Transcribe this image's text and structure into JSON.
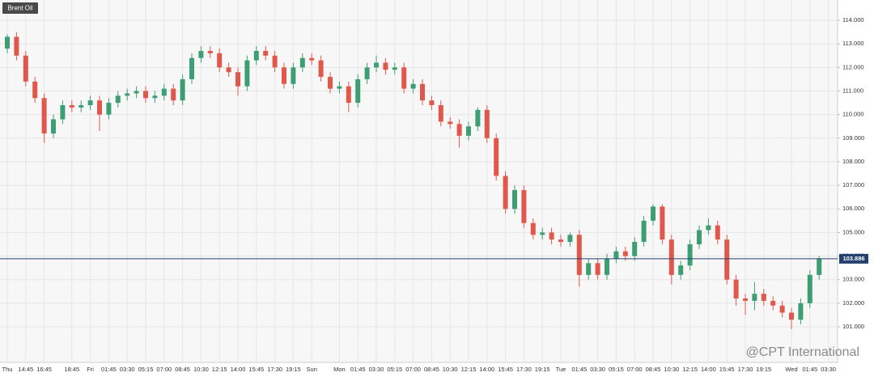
{
  "chart_data": {
    "type": "candlestick",
    "title": "Brent Oil",
    "watermark": "@CPT International",
    "current_price": 103.886,
    "up_color": "#3d9e73",
    "down_color": "#e0584c",
    "price_line_color": "#23406f",
    "grid": true,
    "categories": [
      "Thu",
      null,
      "14:45",
      null,
      "16:45",
      null,
      null,
      "18:45",
      null,
      "Fri",
      null,
      "01:45",
      null,
      "03:30",
      null,
      "05:15",
      null,
      "07:00",
      null,
      "08:45",
      null,
      "10:30",
      null,
      "12:15",
      null,
      "14:00",
      null,
      "15:45",
      null,
      "17:30",
      null,
      "19:15",
      null,
      "Sun",
      null,
      null,
      "Mon",
      null,
      "01:45",
      null,
      "03:30",
      null,
      "05:15",
      null,
      "07:00",
      null,
      "08:45",
      null,
      "10:30",
      null,
      "12:15",
      null,
      "14:00",
      null,
      "15:45",
      null,
      "17:30",
      null,
      "19:15",
      null,
      "Tue",
      null,
      "01:45",
      null,
      "03:30",
      null,
      "05:15",
      null,
      "07:00",
      null,
      "08:45",
      null,
      "10:30",
      null,
      "12:15",
      null,
      "14:00",
      null,
      "15:45",
      null,
      "17:30",
      null,
      "19:15",
      null,
      null,
      "Wed",
      null,
      "01:45",
      null,
      "03:30"
    ],
    "open": [
      112.8,
      113.3,
      112.5,
      111.4,
      110.7,
      109.2,
      109.8,
      110.4,
      110.3,
      110.4,
      110.6,
      110.0,
      110.5,
      110.8,
      110.9,
      111.0,
      110.7,
      110.8,
      111.1,
      110.6,
      111.5,
      112.4,
      112.7,
      112.6,
      112.0,
      111.8,
      111.2,
      112.3,
      112.7,
      112.5,
      112.0,
      111.3,
      112.0,
      112.4,
      112.3,
      111.6,
      111.1,
      111.2,
      110.5,
      111.5,
      112.0,
      112.2,
      111.9,
      112.0,
      111.1,
      111.3,
      110.6,
      110.4,
      109.7,
      109.6,
      109.1,
      109.5,
      110.2,
      109.0,
      107.4,
      106.0,
      106.8,
      105.4,
      104.9,
      105.0,
      104.7,
      104.6,
      104.9,
      103.2,
      103.7,
      103.2,
      103.9,
      104.2,
      104.0,
      104.6,
      105.5,
      106.1,
      104.7,
      103.2,
      103.6,
      104.5,
      105.1,
      105.3,
      104.7,
      103.0,
      102.2,
      102.1,
      102.4,
      102.1,
      101.9,
      101.6,
      101.3,
      102.0,
      103.2,
      null
    ],
    "high": [
      113.4,
      113.5,
      112.7,
      111.6,
      110.9,
      110.0,
      110.6,
      110.6,
      110.6,
      110.8,
      110.8,
      110.7,
      111.0,
      111.1,
      111.2,
      111.2,
      111.0,
      111.3,
      111.3,
      111.7,
      112.6,
      112.9,
      112.9,
      112.8,
      112.2,
      112.0,
      112.5,
      112.9,
      112.9,
      112.7,
      112.2,
      112.2,
      112.6,
      112.6,
      112.5,
      111.8,
      111.4,
      111.4,
      111.7,
      112.2,
      112.5,
      112.4,
      112.2,
      112.2,
      111.5,
      111.5,
      110.8,
      110.6,
      109.9,
      109.8,
      109.7,
      110.3,
      110.4,
      109.2,
      107.6,
      107.0,
      107.0,
      105.6,
      105.2,
      105.2,
      104.9,
      105.0,
      105.1,
      103.9,
      103.9,
      104.1,
      104.4,
      104.4,
      104.8,
      105.7,
      106.2,
      106.2,
      104.9,
      103.8,
      104.7,
      105.3,
      105.6,
      105.5,
      104.9,
      103.2,
      102.4,
      102.9,
      102.6,
      102.3,
      102.1,
      101.8,
      102.2,
      103.4,
      104.0,
      null
    ],
    "low": [
      112.6,
      112.3,
      111.2,
      110.5,
      108.8,
      109.0,
      109.6,
      110.1,
      110.1,
      110.2,
      109.3,
      109.8,
      110.3,
      110.6,
      110.7,
      110.5,
      110.5,
      110.6,
      110.4,
      110.4,
      111.3,
      112.2,
      112.4,
      111.8,
      111.6,
      110.8,
      111.0,
      112.1,
      112.3,
      111.8,
      111.1,
      111.1,
      111.8,
      112.1,
      111.4,
      110.9,
      110.9,
      110.1,
      110.3,
      111.3,
      111.8,
      111.7,
      111.7,
      110.9,
      110.9,
      110.4,
      110.2,
      109.5,
      109.4,
      108.6,
      108.9,
      109.3,
      108.8,
      107.2,
      105.8,
      105.8,
      105.2,
      104.7,
      104.7,
      104.5,
      104.4,
      104.4,
      102.7,
      103.0,
      103.0,
      103.0,
      103.7,
      103.8,
      103.8,
      104.4,
      105.3,
      104.5,
      102.8,
      103.0,
      103.4,
      104.3,
      104.9,
      104.5,
      102.8,
      101.9,
      101.5,
      101.7,
      101.9,
      101.7,
      101.4,
      100.9,
      101.1,
      101.8,
      103.0,
      null
    ],
    "close": [
      113.3,
      112.5,
      111.4,
      110.7,
      109.2,
      109.8,
      110.4,
      110.3,
      110.4,
      110.6,
      110.0,
      110.5,
      110.8,
      110.9,
      111.0,
      110.7,
      110.8,
      111.1,
      110.6,
      111.5,
      112.4,
      112.7,
      112.6,
      112.0,
      111.8,
      111.2,
      112.3,
      112.7,
      112.5,
      112.0,
      111.3,
      112.0,
      112.4,
      112.3,
      111.6,
      111.1,
      111.2,
      110.5,
      111.5,
      112.0,
      112.2,
      111.9,
      112.0,
      111.1,
      111.3,
      110.6,
      110.4,
      109.7,
      109.6,
      109.1,
      109.5,
      110.2,
      109.0,
      107.4,
      106.0,
      106.8,
      105.4,
      104.9,
      105.0,
      104.7,
      104.6,
      104.9,
      103.2,
      103.7,
      103.2,
      103.9,
      104.2,
      104.0,
      104.6,
      105.5,
      106.1,
      104.7,
      103.2,
      103.6,
      104.5,
      105.1,
      105.3,
      104.7,
      103.0,
      102.2,
      102.1,
      102.4,
      102.1,
      101.9,
      101.6,
      101.3,
      102.0,
      103.2,
      103.886,
      null
    ],
    "ylim": [
      99.49,
      114.86
    ],
    "yticks": [
      {
        "value": 101,
        "label": "101.000"
      },
      {
        "value": 102,
        "label": "102.000"
      },
      {
        "value": 103,
        "label": "103.000"
      },
      {
        "value": 104,
        "label": "104.000"
      },
      {
        "value": 105,
        "label": "105.000"
      },
      {
        "value": 106,
        "label": "106.000"
      },
      {
        "value": 107,
        "label": "107.000"
      },
      {
        "value": 108,
        "label": "108.000"
      },
      {
        "value": 109,
        "label": "109.000"
      },
      {
        "value": 110,
        "label": "110.000"
      },
      {
        "value": 111,
        "label": "111.000"
      },
      {
        "value": 112,
        "label": "112.000"
      },
      {
        "value": 113,
        "label": "113.000"
      },
      {
        "value": 114,
        "label": "114.000"
      }
    ]
  }
}
